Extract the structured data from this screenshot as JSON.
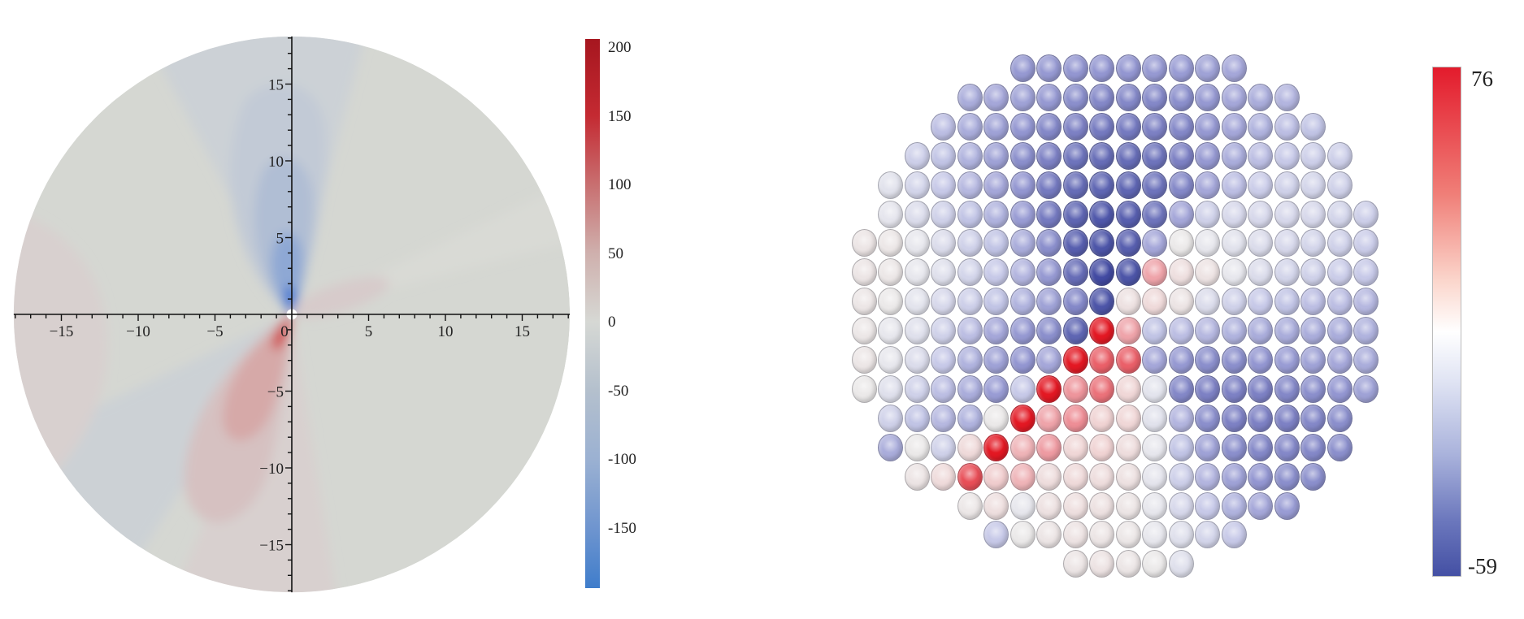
{
  "chart_data": [
    {
      "type": "heatmap",
      "title": "",
      "xlabel": "",
      "ylabel": "",
      "xlim": [
        -18,
        18
      ],
      "ylim": [
        -18,
        18
      ],
      "domain_shape": "disc",
      "x_ticks": [
        -15,
        -10,
        -5,
        0,
        5,
        10,
        15
      ],
      "x_tick_labels": [
        "−15",
        "−10",
        "−5",
        "0",
        "5",
        "10",
        "15"
      ],
      "y_ticks": [
        -15,
        -10,
        -5,
        5,
        10,
        15
      ],
      "y_tick_labels": [
        "−15",
        "−10",
        "−5",
        "5",
        "10",
        "15"
      ],
      "colorbar": {
        "range": [
          -194,
          206
        ],
        "ticks": [
          200,
          150,
          100,
          50,
          0,
          -50,
          -100,
          -150
        ],
        "tick_labels": [
          "200",
          "150",
          "100",
          "50",
          "0",
          "-50",
          "-100",
          "-150"
        ],
        "colors": {
          "max": "#a6161f",
          "zero": "#d6d8d4",
          "min": "#3f7dcb"
        }
      },
      "features": [
        {
          "name": "negative lobe",
          "direction": "+y from origin",
          "sign": "negative"
        },
        {
          "name": "positive lobe",
          "direction": "lower-left from origin",
          "sign": "positive"
        }
      ]
    },
    {
      "type": "heatmap",
      "title": "",
      "marker": "sphere lattice",
      "colorbar": {
        "min": -59,
        "max": 76,
        "max_label": "76",
        "min_label": "-59",
        "colors": {
          "max": "#e31b2c",
          "zero": "#ffffff",
          "min": "#4450a4"
        }
      },
      "rows": [
        {
          "start_col": 6,
          "values": [
            -35,
            -35,
            -36,
            -36,
            -36,
            -35,
            -34,
            -32,
            -30
          ]
        },
        {
          "start_col": 4,
          "values": [
            -28,
            -30,
            -32,
            -35,
            -38,
            -40,
            -40,
            -40,
            -38,
            -35,
            -30,
            -28,
            -25
          ]
        },
        {
          "start_col": 3,
          "values": [
            -22,
            -28,
            -32,
            -36,
            -40,
            -42,
            -44,
            -44,
            -42,
            -40,
            -35,
            -30,
            -26,
            -22,
            -20
          ]
        },
        {
          "start_col": 2,
          "values": [
            -15,
            -20,
            -26,
            -32,
            -38,
            -42,
            -46,
            -48,
            -48,
            -46,
            -42,
            -35,
            -28,
            -22,
            -18,
            -15,
            -15
          ]
        },
        {
          "start_col": 1,
          "values": [
            -5,
            -12,
            -18,
            -24,
            -30,
            -36,
            -44,
            -48,
            -50,
            -50,
            -46,
            -40,
            -30,
            -22,
            -16,
            -14,
            -12,
            -14
          ]
        },
        {
          "start_col": 1,
          "values": [
            -3,
            -8,
            -14,
            -20,
            -26,
            -34,
            -44,
            -50,
            -54,
            -52,
            -46,
            -30,
            -14,
            -10,
            -10,
            -10,
            -10,
            -12,
            -15
          ]
        },
        {
          "start_col": 0,
          "values": [
            4,
            2,
            -2,
            -8,
            -14,
            -20,
            -28,
            -38,
            -52,
            -55,
            -52,
            -30,
            0,
            -2,
            -5,
            -8,
            -10,
            -12,
            -14,
            -16
          ]
        },
        {
          "start_col": 0,
          "values": [
            4,
            2,
            -2,
            -6,
            -12,
            -18,
            -25,
            -35,
            -48,
            -58,
            -55,
            35,
            10,
            6,
            -2,
            -8,
            -12,
            -14,
            -16,
            -18
          ]
        },
        {
          "start_col": 0,
          "values": [
            3,
            0,
            -4,
            -10,
            -15,
            -20,
            -26,
            -32,
            -40,
            -55,
            8,
            15,
            5,
            -8,
            -14,
            -18,
            -20,
            -22,
            -22,
            -24
          ]
        },
        {
          "start_col": 0,
          "values": [
            2,
            -2,
            -6,
            -14,
            -22,
            -30,
            -35,
            -38,
            -50,
            75,
            35,
            -20,
            -22,
            -24,
            -26,
            -28,
            -28,
            -28,
            -28,
            -26
          ]
        },
        {
          "start_col": 0,
          "values": [
            3,
            -2,
            -8,
            -18,
            -26,
            -32,
            -36,
            -30,
            75,
            55,
            55,
            -30,
            -35,
            -38,
            -38,
            -36,
            -34,
            -32,
            -30,
            -28
          ]
        },
        {
          "start_col": 0,
          "values": [
            0,
            -6,
            -14,
            -22,
            -28,
            -34,
            -18,
            75,
            40,
            50,
            18,
            -4,
            -40,
            -42,
            -42,
            -42,
            -40,
            -38,
            -36,
            -32
          ]
        },
        {
          "start_col": 1,
          "values": [
            -14,
            -20,
            -24,
            -26,
            0,
            75,
            35,
            42,
            20,
            18,
            -5,
            -25,
            -38,
            -42,
            -42,
            -42,
            -40,
            -38
          ]
        },
        {
          "start_col": 1,
          "values": [
            -28,
            0,
            -14,
            15,
            75,
            30,
            38,
            18,
            20,
            12,
            -2,
            -20,
            -32,
            -38,
            -40,
            -40,
            -40,
            -38
          ]
        },
        {
          "start_col": 2,
          "values": [
            5,
            14,
            60,
            22,
            30,
            12,
            15,
            12,
            8,
            -3,
            -15,
            -25,
            -32,
            -36,
            -38,
            -38
          ]
        },
        {
          "start_col": 4,
          "values": [
            2,
            10,
            -2,
            8,
            10,
            8,
            4,
            -2,
            -10,
            -18,
            -26,
            -30,
            -34
          ]
        },
        {
          "start_col": 5,
          "values": [
            -18,
            0,
            4,
            6,
            4,
            2,
            -2,
            -6,
            -12,
            -18
          ]
        },
        {
          "start_col": 8,
          "values": [
            4,
            6,
            3,
            0,
            -6
          ]
        }
      ]
    }
  ]
}
